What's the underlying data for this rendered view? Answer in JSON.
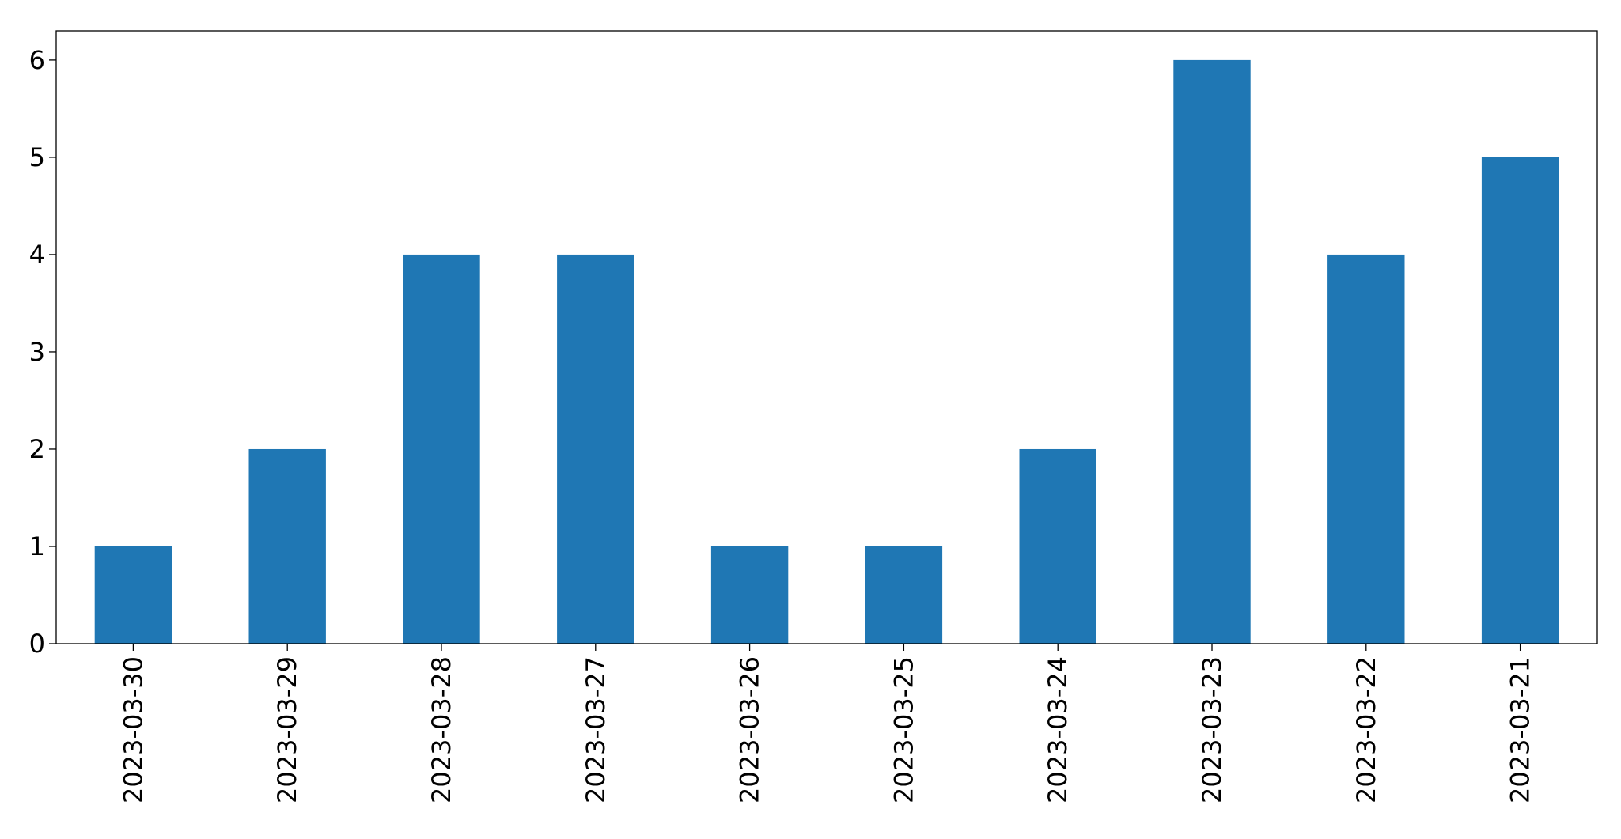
{
  "chart_data": {
    "type": "bar",
    "categories": [
      "2023-03-30",
      "2023-03-29",
      "2023-03-28",
      "2023-03-27",
      "2023-03-26",
      "2023-03-25",
      "2023-03-24",
      "2023-03-23",
      "2023-03-22",
      "2023-03-21"
    ],
    "values": [
      1,
      2,
      4,
      4,
      1,
      1,
      2,
      6,
      4,
      5
    ],
    "color": "#1f77b4",
    "ylim": [
      0,
      6.3
    ],
    "yticks": [
      0,
      1,
      2,
      3,
      4,
      5,
      6
    ],
    "grid": false
  }
}
